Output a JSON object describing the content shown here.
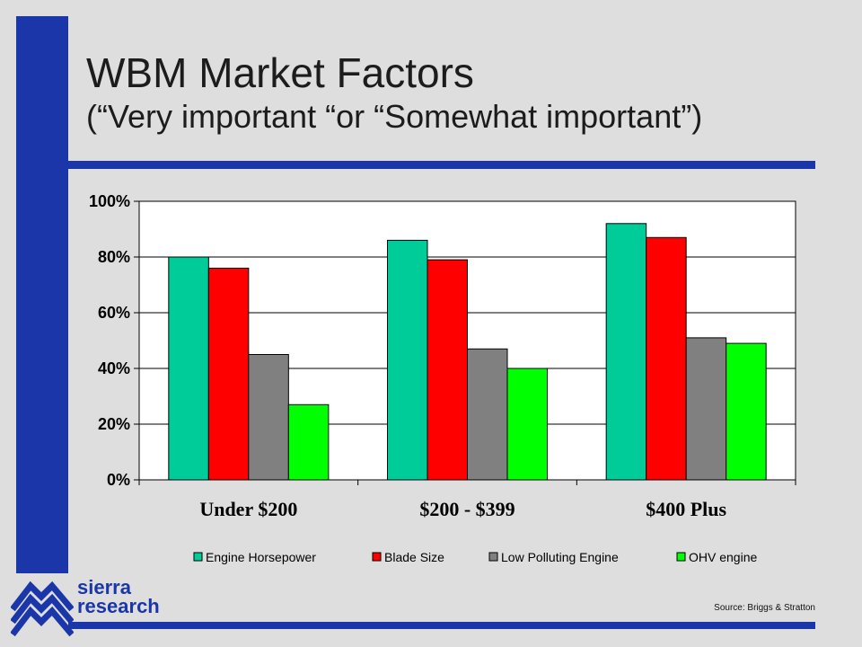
{
  "header": {
    "title": "WBM Market Factors",
    "subtitle": "(“Very important “or “Somewhat important”)"
  },
  "logo": {
    "line1": "sierra",
    "line2": "research"
  },
  "source": "Source: Briggs & Stratton",
  "colors": {
    "accent": "#1a36a8",
    "background": "#dedede",
    "plot_background": "#ffffff"
  },
  "chart_data": {
    "type": "bar",
    "title": "",
    "xlabel": "",
    "ylabel": "",
    "categories": [
      "Under $200",
      "$200 - $399",
      "$400 Plus"
    ],
    "series": [
      {
        "name": "Engine Horsepower",
        "color": "#00cc99",
        "values": [
          80,
          86,
          92
        ]
      },
      {
        "name": "Blade Size",
        "color": "#ff0000",
        "values": [
          76,
          79,
          87
        ]
      },
      {
        "name": "Low Polluting Engine",
        "color": "#808080",
        "values": [
          45,
          47,
          51
        ]
      },
      {
        "name": "OHV engine",
        "color": "#00ff00",
        "values": [
          27,
          40,
          49
        ]
      }
    ],
    "ylim": [
      0,
      100
    ],
    "yticks": [
      0,
      20,
      40,
      60,
      80,
      100
    ],
    "ytick_labels": [
      "0%",
      "20%",
      "40%",
      "60%",
      "80%",
      "100%"
    ],
    "grid": true,
    "legend": "bottom"
  }
}
